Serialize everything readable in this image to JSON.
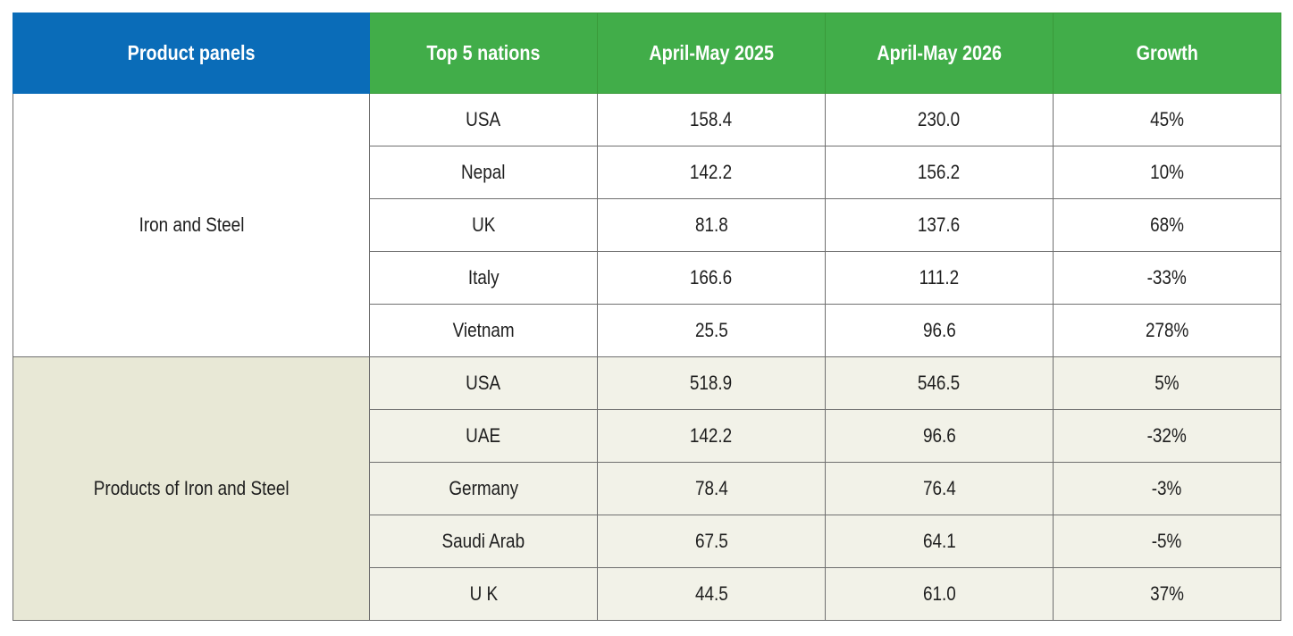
{
  "table": {
    "headers": [
      "Product panels",
      "Top 5 nations",
      "April-May 2025",
      "April-May 2026",
      "Growth"
    ],
    "groups": [
      {
        "label": "Iron and Steel",
        "rows": [
          {
            "nation": "USA",
            "y2025": "158.4",
            "y2026": "230.0",
            "growth": "45%"
          },
          {
            "nation": "Nepal",
            "y2025": "142.2",
            "y2026": "156.2",
            "growth": "10%"
          },
          {
            "nation": "UK",
            "y2025": "81.8",
            "y2026": "137.6",
            "growth": "68%"
          },
          {
            "nation": "Italy",
            "y2025": "166.6",
            "y2026": "111.2",
            "growth": "-33%"
          },
          {
            "nation": "Vietnam",
            "y2025": "25.5",
            "y2026": "96.6",
            "growth": "278%"
          }
        ]
      },
      {
        "label": "Products of Iron and Steel",
        "rows": [
          {
            "nation": "USA",
            "y2025": "518.9",
            "y2026": "546.5",
            "growth": "5%"
          },
          {
            "nation": "UAE",
            "y2025": "142.2",
            "y2026": "96.6",
            "growth": "-32%"
          },
          {
            "nation": "Germany",
            "y2025": "78.4",
            "y2026": "76.4",
            "growth": "-3%"
          },
          {
            "nation": "Saudi Arab",
            "y2025": "67.5",
            "y2026": "64.1",
            "growth": "-5%"
          },
          {
            "nation": "U K",
            "y2025": "44.5",
            "y2026": "61.0",
            "growth": "37%"
          }
        ]
      }
    ]
  },
  "colors": {
    "header_blue": "#0a6cb8",
    "header_green": "#41ad49",
    "group2_band": "#f2f2e8"
  }
}
